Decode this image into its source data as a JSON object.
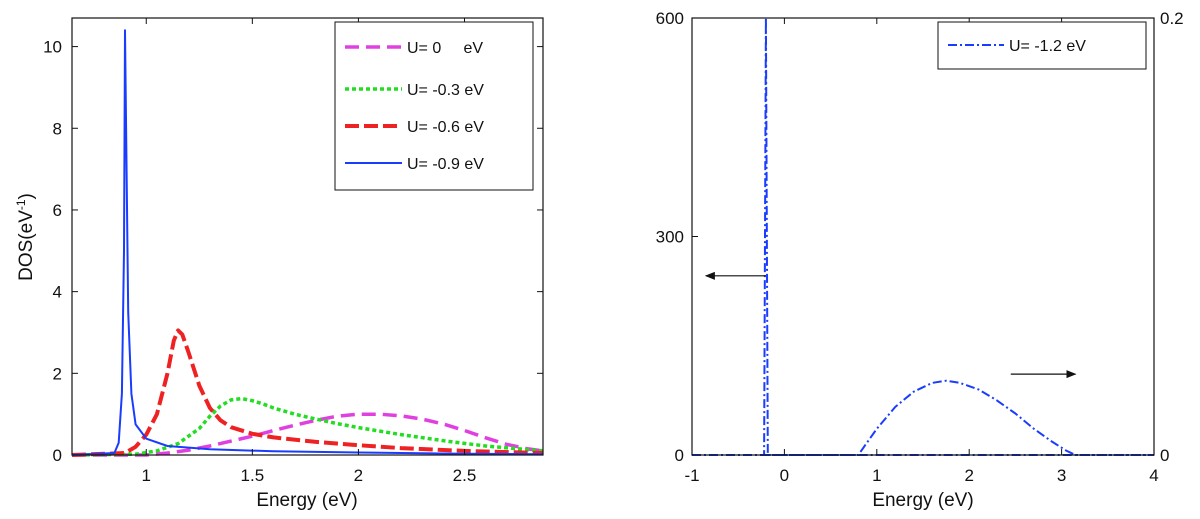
{
  "chart_data": [
    {
      "type": "line",
      "xlabel": "Energy (eV)",
      "ylabel": "DOS(eV",
      "ylabel_sup": "-1",
      "ylabel_close": ")",
      "xlim": [
        0.65,
        2.87
      ],
      "ylim": [
        0,
        10.7
      ],
      "xticks": [
        1,
        1.5,
        2,
        2.5
      ],
      "xtick_labels": [
        "1",
        "1.5",
        "2",
        "2.5"
      ],
      "yticks": [
        0,
        2,
        4,
        6,
        8,
        10
      ],
      "ytick_labels": [
        "0",
        "2",
        "4",
        "6",
        "8",
        "10"
      ],
      "grid": false,
      "legend_position": "top-right",
      "series": [
        {
          "name": "U= 0     eV",
          "color": "#e040e0",
          "dash": "dashed",
          "x": [
            0.65,
            1.0,
            1.1,
            1.2,
            1.3,
            1.4,
            1.5,
            1.6,
            1.7,
            1.8,
            1.9,
            2.0,
            2.1,
            2.2,
            2.3,
            2.4,
            2.5,
            2.6,
            2.7,
            2.8,
            2.87
          ],
          "y": [
            0,
            0,
            0.05,
            0.12,
            0.22,
            0.34,
            0.46,
            0.6,
            0.73,
            0.85,
            0.95,
            1.0,
            1.0,
            0.96,
            0.88,
            0.76,
            0.6,
            0.42,
            0.26,
            0.15,
            0.1
          ]
        },
        {
          "name": "U= -0.3 eV",
          "color": "#22dd22",
          "dash": "dotted",
          "x": [
            0.65,
            0.95,
            1.05,
            1.15,
            1.25,
            1.3,
            1.35,
            1.4,
            1.45,
            1.5,
            1.55,
            1.6,
            1.7,
            1.8,
            1.9,
            2.0,
            2.2,
            2.4,
            2.6,
            2.87
          ],
          "y": [
            0,
            0.02,
            0.1,
            0.28,
            0.65,
            0.95,
            1.2,
            1.35,
            1.38,
            1.33,
            1.25,
            1.15,
            1.0,
            0.88,
            0.77,
            0.67,
            0.5,
            0.35,
            0.22,
            0.1
          ]
        },
        {
          "name": "U= -0.6 eV",
          "color": "#ee2222",
          "dash": "dashed",
          "x": [
            0.65,
            0.9,
            0.95,
            1.0,
            1.05,
            1.1,
            1.13,
            1.15,
            1.17,
            1.2,
            1.25,
            1.3,
            1.35,
            1.4,
            1.5,
            1.6,
            1.8,
            2.0,
            2.2,
            2.5,
            2.87
          ],
          "y": [
            0,
            0.05,
            0.2,
            0.5,
            1.0,
            2.0,
            2.8,
            3.05,
            2.95,
            2.5,
            1.7,
            1.15,
            0.85,
            0.68,
            0.52,
            0.43,
            0.32,
            0.24,
            0.17,
            0.1,
            0.05
          ]
        },
        {
          "name": "U= -0.9 eV",
          "color": "#1a3cff",
          "dash": "solid",
          "x": [
            0.65,
            0.85,
            0.87,
            0.885,
            0.895,
            0.9,
            0.905,
            0.915,
            0.93,
            0.95,
            1.0,
            1.1,
            1.3,
            1.6,
            2.0,
            2.5,
            2.87
          ],
          "y": [
            0,
            0.05,
            0.3,
            1.5,
            5.0,
            10.4,
            8.0,
            3.5,
            1.5,
            0.75,
            0.4,
            0.22,
            0.14,
            0.09,
            0.06,
            0.03,
            0.02
          ]
        }
      ]
    },
    {
      "type": "line",
      "xlabel": "Energy (eV)",
      "xlim": [
        -1,
        4
      ],
      "ylim_left": [
        0,
        600
      ],
      "ylim_right": [
        0,
        0.2
      ],
      "xticks": [
        -1,
        0,
        1,
        2,
        3,
        4
      ],
      "xtick_labels": [
        "-1",
        "0",
        "1",
        "2",
        "3",
        "4"
      ],
      "yticks_left": [
        0,
        300,
        600
      ],
      "ytick_labels_left": [
        "0",
        "300",
        "600"
      ],
      "yticks_right": [
        0,
        0.2
      ],
      "ytick_labels_right": [
        "0",
        "0.2"
      ],
      "grid": false,
      "legend_position": "top-right",
      "annotations": [
        {
          "type": "arrow",
          "direction": "left",
          "axis": "left",
          "x_from": -0.2,
          "x_to": -0.85,
          "y": 0.41
        },
        {
          "type": "arrow",
          "direction": "right",
          "axis": "right",
          "x_from": 2.45,
          "x_to": 3.15,
          "y": 0.037
        }
      ],
      "series": [
        {
          "name": "U= -1.2 eV",
          "color": "#1a3cff",
          "dash": "dashdot",
          "axis": "left",
          "x": [
            -1,
            -0.22,
            -0.2,
            -0.2,
            -0.18,
            4
          ],
          "y": [
            0,
            0,
            600,
            600,
            0,
            0
          ]
        },
        {
          "name": "",
          "color": "#1a3cff",
          "dash": "dashdot",
          "axis": "right",
          "x": [
            -1,
            0.8,
            0.85,
            1.0,
            1.2,
            1.4,
            1.6,
            1.75,
            1.9,
            2.1,
            2.3,
            2.5,
            2.7,
            2.9,
            3.05,
            3.15,
            4
          ],
          "y": [
            0,
            0,
            0.003,
            0.012,
            0.022,
            0.029,
            0.033,
            0.034,
            0.033,
            0.03,
            0.025,
            0.019,
            0.012,
            0.006,
            0.002,
            0,
            0
          ]
        }
      ]
    }
  ]
}
